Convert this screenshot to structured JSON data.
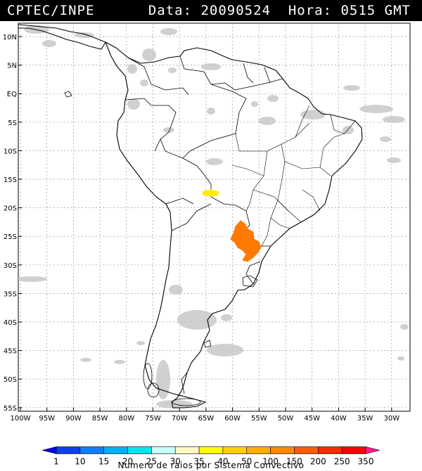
{
  "header": {
    "left_text": "CPTEC/INPE",
    "right_text": "Data: 20090524  Hora: 0515 GMT"
  },
  "axes": {
    "lat_labels": [
      "10N",
      "5N",
      "EQ",
      "5S",
      "10S",
      "15S",
      "20S",
      "25S",
      "30S",
      "35S",
      "40S",
      "45S",
      "50S",
      "55S"
    ],
    "lon_labels": [
      "100W",
      "95W",
      "90W",
      "85W",
      "80W",
      "75W",
      "70W",
      "65W",
      "60W",
      "55W",
      "50W",
      "45W",
      "40W",
      "35W",
      "30W"
    ],
    "grid": "dotted"
  },
  "legend": {
    "values": [
      "1",
      "10",
      "15",
      "20",
      "25",
      "30",
      "35",
      "40",
      "50",
      "100",
      "150",
      "200",
      "250",
      "350"
    ],
    "colors": [
      "#0a00e8",
      "#0b3ff0",
      "#0b7ef8",
      "#00b0f5",
      "#00e6f0",
      "#c8fff8",
      "#fff8c0",
      "#ffff00",
      "#ffd200",
      "#ffae00",
      "#ff8a00",
      "#ff5a00",
      "#ff2a00",
      "#ff0000",
      "#ff1b8a"
    ],
    "caption": "Numero de raios por Sistema Convectivo"
  },
  "map": {
    "region": "South America",
    "lightning_systems": [
      {
        "name": "yellow-system",
        "lon": -63.5,
        "lat": -17.5,
        "color": "#ffee00"
      },
      {
        "name": "orange-system",
        "lon": -57.5,
        "lat": -26.5,
        "color": "#ff7a00"
      }
    ]
  }
}
